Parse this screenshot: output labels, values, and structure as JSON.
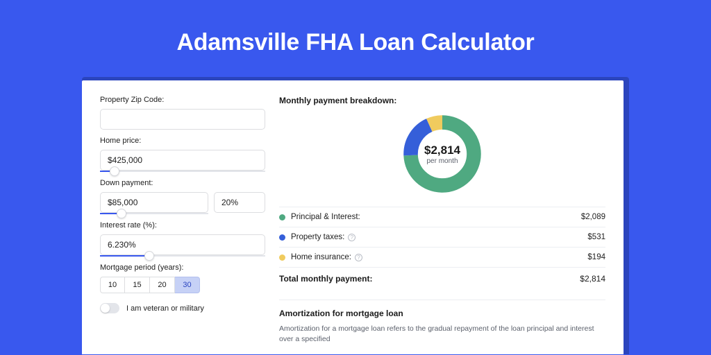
{
  "page": {
    "title": "Adamsville FHA Loan Calculator",
    "bg_color": "#3958ee",
    "card_shadow_color": "#2b45bd"
  },
  "form": {
    "zip": {
      "label": "Property Zip Code:",
      "value": ""
    },
    "home_price": {
      "label": "Home price:",
      "value": "$425,000",
      "slider_pct": 9
    },
    "down_payment": {
      "label": "Down payment:",
      "amount": "$85,000",
      "percent": "20%",
      "slider_pct": 20
    },
    "interest_rate": {
      "label": "Interest rate (%):",
      "value": "6.230%",
      "slider_pct": 30
    },
    "mortgage_period": {
      "label": "Mortgage period (years):",
      "options": [
        "10",
        "15",
        "20",
        "30"
      ],
      "active_index": 3
    },
    "veteran": {
      "label": "I am veteran or military",
      "checked": false
    }
  },
  "breakdown": {
    "title": "Monthly payment breakdown:",
    "donut": {
      "amount": "$2,814",
      "subtext": "per month",
      "ring_bg": "#eef1f5",
      "segments": [
        {
          "color": "#4fa981",
          "fraction": 0.742
        },
        {
          "color": "#355fd9",
          "fraction": 0.189
        },
        {
          "color": "#f0cb5e",
          "fraction": 0.069
        }
      ]
    },
    "lines": [
      {
        "swatch": "#4fa981",
        "label": "Principal & Interest:",
        "help": false,
        "value": "$2,089"
      },
      {
        "swatch": "#355fd9",
        "label": "Property taxes:",
        "help": true,
        "value": "$531"
      },
      {
        "swatch": "#f0cb5e",
        "label": "Home insurance:",
        "help": true,
        "value": "$194"
      }
    ],
    "total": {
      "label": "Total monthly payment:",
      "value": "$2,814"
    }
  },
  "amortization": {
    "title": "Amortization for mortgage loan",
    "text": "Amortization for a mortgage loan refers to the gradual repayment of the loan principal and interest over a specified"
  },
  "style": {
    "input_border": "#dcdde0",
    "slider_track": "#e3e5ea",
    "slider_fill": "#3958ee",
    "divider": "#eceef2",
    "text_primary": "#202020",
    "text_muted": "#5a5f6a",
    "period_active_bg": "#c6d1f6",
    "period_active_fg": "#2a44c0"
  }
}
